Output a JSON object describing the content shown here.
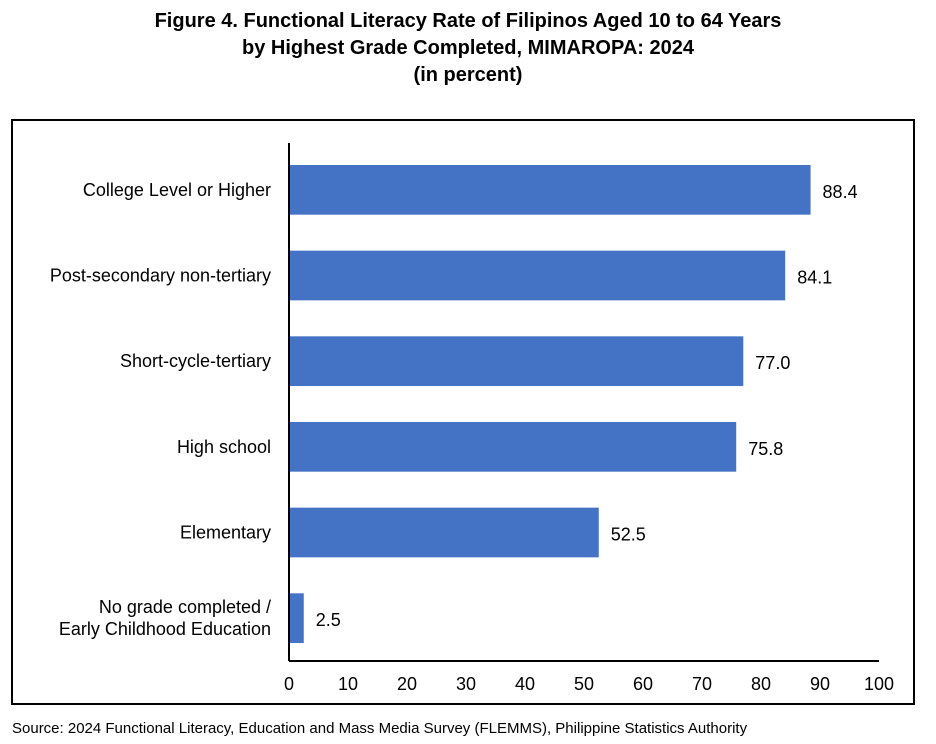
{
  "title_lines": [
    "Figure 4. Functional Literacy Rate of Filipinos Aged 10 to 64 Years",
    "by Highest Grade Completed, MIMAROPA: 2024",
    "(in percent)"
  ],
  "source": "Source: 2024 Functional Literacy, Education and Mass Media Survey (FLEMMS), Philippine Statistics Authority",
  "chart_data": {
    "type": "bar",
    "orientation": "horizontal",
    "categories": [
      [
        "College Level or Higher"
      ],
      [
        "Post-secondary non-tertiary"
      ],
      [
        "Short-cycle-tertiary"
      ],
      [
        "High school"
      ],
      [
        "Elementary"
      ],
      [
        "No grade completed /",
        "Early Childhood Education"
      ]
    ],
    "values": [
      88.4,
      84.1,
      77.0,
      75.8,
      52.5,
      2.5
    ],
    "value_labels": [
      "88.4",
      "84.1",
      "77.0",
      "75.8",
      "52.5",
      "2.5"
    ],
    "xlim": [
      0,
      100
    ],
    "xticks": [
      0,
      10,
      20,
      30,
      40,
      50,
      60,
      70,
      80,
      90,
      100
    ],
    "grid": false,
    "bar_color": "#4472C4"
  }
}
